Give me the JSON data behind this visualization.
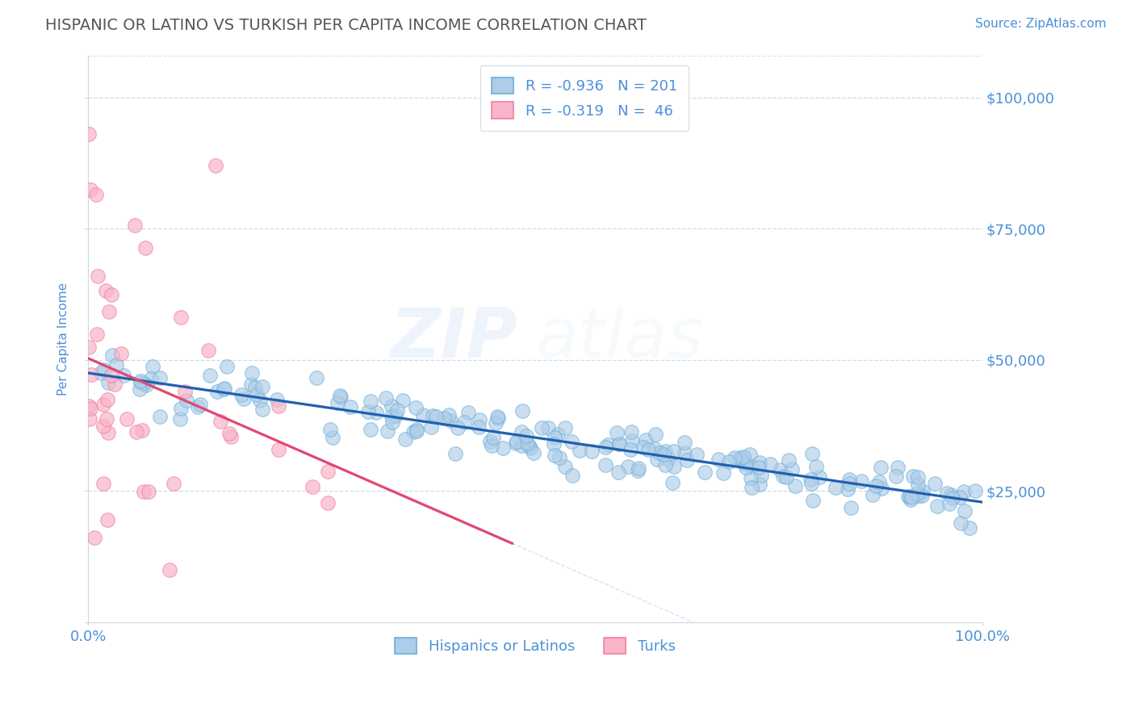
{
  "title": "HISPANIC OR LATINO VS TURKISH PER CAPITA INCOME CORRELATION CHART",
  "source_text": "Source: ZipAtlas.com",
  "ylabel": "Per Capita Income",
  "xlim": [
    0,
    1
  ],
  "ylim": [
    0,
    108000
  ],
  "yticks": [
    0,
    25000,
    50000,
    75000,
    100000
  ],
  "ytick_labels": [
    "",
    "$25,000",
    "$50,000",
    "$75,000",
    "$100,000"
  ],
  "blue_face": "#aecde8",
  "blue_edge": "#6baed6",
  "pink_face": "#f8b4c8",
  "pink_edge": "#f080a0",
  "trend_blue": "#2060b0",
  "trend_pink": "#e04870",
  "grid_color": "#c8d8e8",
  "label_color": "#4a90d9",
  "title_color": "#555555",
  "background_color": "#ffffff",
  "r_blue": -0.936,
  "n_blue": 201,
  "r_pink": -0.319,
  "n_pink": 46,
  "legend_label_blue": "Hispanics or Latinos",
  "legend_label_pink": "Turks"
}
